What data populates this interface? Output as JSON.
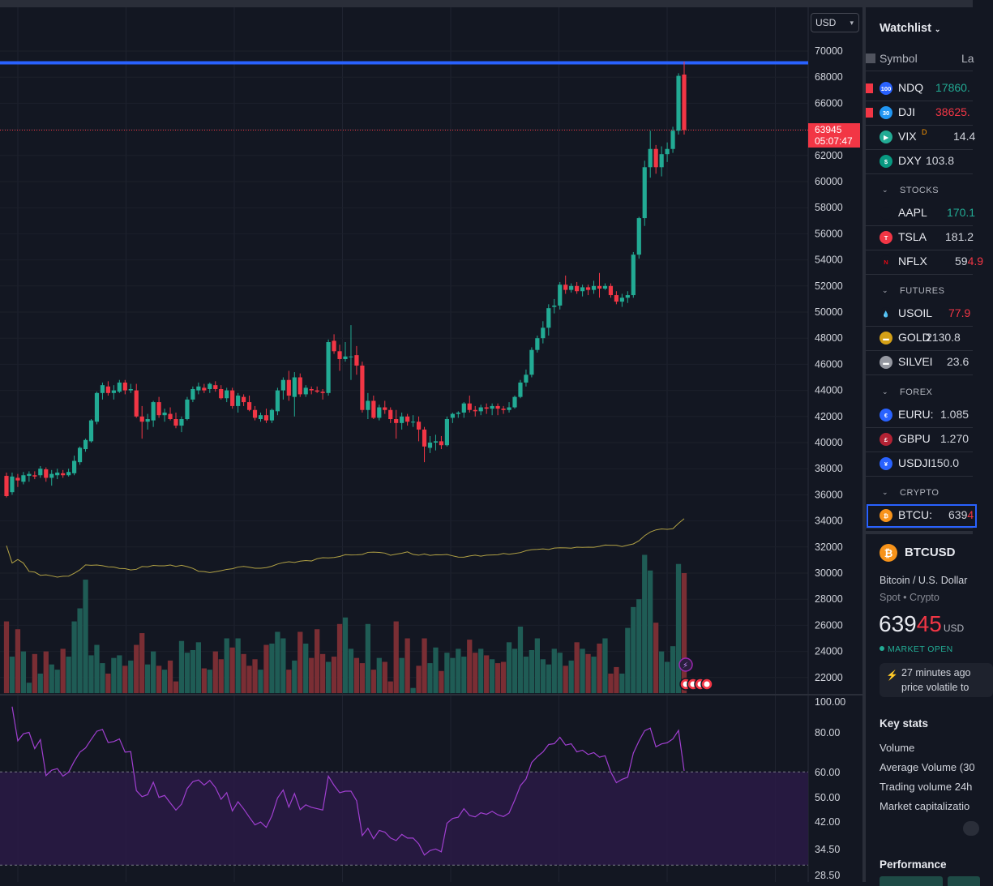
{
  "chart": {
    "currency": "USD",
    "last_price": "63945",
    "countdown": "05:07:47",
    "price_axis": [
      "70000",
      "68000",
      "66000",
      "64000",
      "62000",
      "60000",
      "58000",
      "56000",
      "54000",
      "52000",
      "50000",
      "48000",
      "46000",
      "44000",
      "42000",
      "40000",
      "38000",
      "36000",
      "34000",
      "32000",
      "30000",
      "28000",
      "26000",
      "24000",
      "22000"
    ],
    "rsi_axis": [
      "100.00",
      "80.00",
      "60.00",
      "50.00",
      "42.00",
      "34.50",
      "28.50"
    ]
  },
  "chart_data": {
    "type": "candlestick",
    "y_unit": "USD",
    "ylim": [
      21000,
      71000
    ],
    "horizontal_line": 69100,
    "candles_ohlc": [
      [
        37450,
        37700,
        35800,
        35900
      ],
      [
        36200,
        37700,
        36000,
        37400
      ],
      [
        37300,
        37600,
        36600,
        37100
      ],
      [
        37000,
        37750,
        36800,
        37500
      ],
      [
        37450,
        37800,
        37000,
        37600
      ],
      [
        37500,
        37800,
        37200,
        37400
      ],
      [
        37500,
        38200,
        37300,
        38000
      ],
      [
        37950,
        38100,
        37000,
        37300
      ],
      [
        37300,
        37900,
        36700,
        37600
      ],
      [
        37500,
        38000,
        37200,
        37700
      ],
      [
        37650,
        37900,
        37300,
        37500
      ],
      [
        37500,
        38000,
        37400,
        37750
      ],
      [
        37650,
        39000,
        37500,
        38600
      ],
      [
        38500,
        39700,
        38300,
        39600
      ],
      [
        39500,
        40300,
        39300,
        40200
      ],
      [
        40100,
        41800,
        40000,
        41700
      ],
      [
        41600,
        43900,
        41400,
        43800
      ],
      [
        43800,
        44600,
        43300,
        44400
      ],
      [
        44300,
        44700,
        43600,
        43800
      ],
      [
        43800,
        44400,
        43300,
        44000
      ],
      [
        43900,
        44800,
        43800,
        44600
      ],
      [
        44600,
        44800,
        43700,
        44000
      ],
      [
        44000,
        44500,
        43800,
        44100
      ],
      [
        44000,
        44500,
        41900,
        42000
      ],
      [
        42000,
        42800,
        40300,
        41600
      ],
      [
        41600,
        42200,
        41000,
        41800
      ],
      [
        41700,
        43200,
        41200,
        43100
      ],
      [
        43100,
        43500,
        41900,
        42100
      ],
      [
        42100,
        42600,
        41600,
        42300
      ],
      [
        42200,
        42700,
        41700,
        41800
      ],
      [
        41800,
        42300,
        41100,
        41300
      ],
      [
        41300,
        42000,
        40800,
        41800
      ],
      [
        41800,
        43500,
        41700,
        43300
      ],
      [
        43300,
        44300,
        43100,
        44100
      ],
      [
        44000,
        44600,
        43700,
        44300
      ],
      [
        44200,
        44500,
        43800,
        44000
      ],
      [
        44100,
        44600,
        43800,
        44500
      ],
      [
        44400,
        44700,
        43900,
        44100
      ],
      [
        44100,
        44400,
        43300,
        43400
      ],
      [
        43400,
        44200,
        43100,
        44000
      ],
      [
        44000,
        44200,
        42600,
        42800
      ],
      [
        42800,
        43800,
        42300,
        43600
      ],
      [
        43500,
        43700,
        42800,
        43100
      ],
      [
        43100,
        43600,
        42400,
        42500
      ],
      [
        42500,
        42800,
        41700,
        41900
      ],
      [
        41800,
        42300,
        41600,
        42100
      ],
      [
        42100,
        42600,
        41500,
        41700
      ],
      [
        41700,
        42600,
        41500,
        42500
      ],
      [
        42400,
        44200,
        42100,
        44000
      ],
      [
        44000,
        45000,
        43300,
        44800
      ],
      [
        44800,
        45500,
        43200,
        43600
      ],
      [
        43500,
        45400,
        42000,
        45000
      ],
      [
        45000,
        45300,
        43500,
        43700
      ],
      [
        43700,
        44400,
        43500,
        44200
      ],
      [
        44100,
        44300,
        43700,
        44000
      ],
      [
        44000,
        44300,
        43800,
        43900
      ],
      [
        43900,
        44100,
        43300,
        43800
      ],
      [
        43800,
        47900,
        43600,
        47700
      ],
      [
        47800,
        48300,
        46800,
        47000
      ],
      [
        47000,
        47500,
        45500,
        46400
      ],
      [
        46400,
        47700,
        46200,
        46600
      ],
      [
        46600,
        49000,
        44800,
        46600
      ],
      [
        46700,
        47400,
        45200,
        45900
      ],
      [
        45900,
        46200,
        42300,
        42500
      ],
      [
        42500,
        43800,
        41800,
        43200
      ],
      [
        43200,
        43600,
        41800,
        41900
      ],
      [
        41900,
        42900,
        41700,
        42700
      ],
      [
        42700,
        43200,
        42200,
        42500
      ],
      [
        42500,
        42700,
        41500,
        41800
      ],
      [
        41800,
        42500,
        40300,
        41500
      ],
      [
        41500,
        42300,
        41000,
        42000
      ],
      [
        42000,
        42200,
        41300,
        41600
      ],
      [
        41600,
        42100,
        41200,
        41600
      ],
      [
        41600,
        42000,
        40100,
        41000
      ],
      [
        41000,
        41200,
        38500,
        39700
      ],
      [
        39600,
        40500,
        39200,
        40000
      ],
      [
        40000,
        40600,
        39400,
        40100
      ],
      [
        40100,
        40500,
        39500,
        39800
      ],
      [
        39800,
        42000,
        39700,
        41800
      ],
      [
        41900,
        42300,
        41500,
        42200
      ],
      [
        42200,
        42400,
        41900,
        42300
      ],
      [
        42300,
        43100,
        41900,
        43000
      ],
      [
        43000,
        43600,
        42300,
        42500
      ],
      [
        42500,
        42800,
        42000,
        42400
      ],
      [
        42400,
        42900,
        42100,
        42700
      ],
      [
        42700,
        43000,
        42200,
        42600
      ],
      [
        42600,
        43000,
        42100,
        42800
      ],
      [
        42800,
        43000,
        42100,
        42600
      ],
      [
        42600,
        42800,
        42200,
        42500
      ],
      [
        42500,
        43100,
        42300,
        42700
      ],
      [
        42700,
        43600,
        42600,
        43500
      ],
      [
        43500,
        44800,
        43400,
        44600
      ],
      [
        44600,
        45600,
        44300,
        45200
      ],
      [
        45200,
        47300,
        45000,
        47100
      ],
      [
        47100,
        48200,
        46900,
        48000
      ],
      [
        48000,
        49300,
        47600,
        48800
      ],
      [
        48800,
        50600,
        48200,
        50300
      ],
      [
        50400,
        51000,
        49900,
        50500
      ],
      [
        50500,
        52300,
        50200,
        52100
      ],
      [
        52100,
        52800,
        51400,
        51700
      ],
      [
        51700,
        52200,
        51500,
        52000
      ],
      [
        52000,
        52300,
        51400,
        51600
      ],
      [
        51600,
        52100,
        51200,
        51900
      ],
      [
        51900,
        52100,
        51300,
        51700
      ],
      [
        51700,
        52400,
        51400,
        52000
      ],
      [
        52000,
        53000,
        51100,
        51800
      ],
      [
        51800,
        52200,
        51700,
        52000
      ],
      [
        52000,
        52200,
        51100,
        51300
      ],
      [
        51300,
        51600,
        50600,
        50800
      ],
      [
        50800,
        51400,
        50400,
        51100
      ],
      [
        51100,
        51600,
        50700,
        51300
      ],
      [
        51300,
        54600,
        51100,
        54400
      ],
      [
        54400,
        57300,
        54100,
        57200
      ],
      [
        57200,
        61600,
        56600,
        61100
      ],
      [
        61100,
        63900,
        60300,
        62500
      ],
      [
        62500,
        62800,
        60600,
        61100
      ],
      [
        61100,
        62700,
        60400,
        62100
      ],
      [
        62100,
        63000,
        61500,
        62500
      ],
      [
        62500,
        64200,
        62200,
        63900
      ],
      [
        63900,
        68300,
        63600,
        68100
      ],
      [
        68200,
        69200,
        63600,
        63945
      ]
    ],
    "volume": [
      26300,
      23600,
      25700,
      24000,
      21600,
      23800,
      22300,
      24000,
      23000,
      22600,
      24200,
      23600,
      26300,
      27300,
      29500,
      23700,
      24500,
      23100,
      22300,
      23500,
      23700,
      22900,
      23300,
      24500,
      25400,
      23000,
      24000,
      22900,
      22600,
      23300,
      21700,
      24800,
      23900,
      24100,
      24700,
      22700,
      22600,
      24000,
      23400,
      25000,
      24300,
      25000,
      23800,
      22900,
      23400,
      22600,
      24500,
      24600,
      25500,
      25000,
      22600,
      23300,
      25500,
      24600,
      23500,
      25700,
      23800,
      23200,
      23600,
      26100,
      26600,
      24200,
      23500,
      23100,
      26100,
      22600,
      23500,
      23200,
      21700,
      26300,
      23500,
      25000,
      21200,
      22900,
      25000,
      23100,
      24300,
      22500,
      23900,
      23500,
      24200,
      23600,
      24900,
      23900,
      24200,
      23700,
      23400,
      23100,
      23200,
      24700,
      24200,
      25900,
      23600,
      24100,
      25000,
      23400,
      23000,
      24200,
      23900,
      22900,
      23300,
      24700,
      24200,
      23800,
      23600,
      24600,
      25000,
      22300,
      22800,
      22300,
      25800,
      27400,
      28000,
      31400,
      30200,
      26200,
      24000,
      23200,
      24400,
      30700,
      30000
    ],
    "volume_ma_line": true,
    "rsi_ylim": [
      28.5,
      100
    ]
  },
  "watchlist": {
    "title": "Watchlist",
    "col_symbol": "Symbol",
    "col_last": "La",
    "groups": [
      {
        "name": "STOCKS"
      },
      {
        "name": "FUTURES"
      },
      {
        "name": "FOREX"
      },
      {
        "name": "CRYPTO"
      }
    ],
    "rows": [
      {
        "icon": "100",
        "sym": "NDQ",
        "val": "17860.",
        "color": "#22ab94"
      },
      {
        "icon": "30",
        "sym": "DJI",
        "val": "38625.",
        "color": "#f23645"
      },
      {
        "icon": "▶",
        "sym": "VIX",
        "badge": "D",
        "val": "14.4",
        "color": "#d1d4dc"
      },
      {
        "icon": "$",
        "sym": "DXY",
        "val": "103.8",
        "color": "#d1d4dc"
      },
      {
        "icon": "",
        "sym": "AAPL",
        "val": "170.1",
        "color": "#22ab94"
      },
      {
        "icon": "T",
        "sym": "TSLA",
        "val": "181.2",
        "color": "#d1d4dc"
      },
      {
        "icon": "N",
        "sym": "NFLX",
        "val": "59",
        "val_dec": "4.9",
        "color": "#d1d4dc"
      },
      {
        "icon": "💧",
        "sym": "USOIL",
        "val": "77.9",
        "color": "#f23645"
      },
      {
        "icon": "▬",
        "sym": "GOLD",
        "val": "2130.8",
        "color": "#d1d4dc"
      },
      {
        "icon": "▬",
        "sym": "SILVEI",
        "val": "23.6",
        "color": "#d1d4dc"
      },
      {
        "icon": "€",
        "sym": "EURU:",
        "val": "1.085",
        "color": "#d1d4dc"
      },
      {
        "icon": "£",
        "sym": "GBPU",
        "val": "1.270",
        "color": "#d1d4dc"
      },
      {
        "icon": "¥",
        "sym": "USDJI",
        "val": "150.0",
        "color": "#d1d4dc"
      },
      {
        "icon": "₿",
        "sym": "BTCU:",
        "val": "639",
        "val_dec": "4",
        "color": "#d1d4dc"
      }
    ]
  },
  "details": {
    "symbol": "BTCUSD",
    "name": "Bitcoin / U.S. Dollar",
    "type": "Spot • Crypto",
    "price_main": "639",
    "price_dec": "45",
    "currency": "USD",
    "market_status": "MARKET OPEN",
    "news_line1": "27 minutes ago",
    "news_line2": "price volatile to",
    "key_stats_title": "Key stats",
    "stats": [
      "Volume",
      "Average Volume (30",
      "Trading volume 24h",
      "Market capitalizatio"
    ],
    "performance_title": "Performance"
  },
  "colors": {
    "up": "#22ab94",
    "down": "#f23645",
    "accent": "#2962ff",
    "rsi_line": "#9c27b0"
  }
}
